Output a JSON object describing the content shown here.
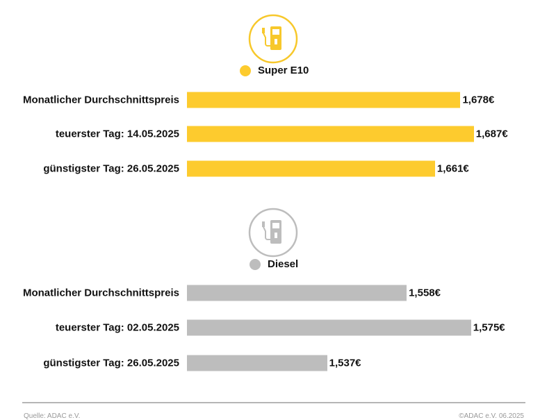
{
  "chart_data": [
    {
      "type": "bar",
      "orientation": "horizontal",
      "series_name": "Super E10",
      "color": "#FDCB2E",
      "icon": "fuel-pump-icon",
      "unit": "€",
      "categories": [
        "Monatlicher Durchschnittspreis",
        "teuerster Tag: 14.05.2025",
        "günstigster Tag: 26.05.2025"
      ],
      "values": [
        1.678,
        1.687,
        1.661
      ],
      "value_labels": [
        "1,678€",
        "1,687€",
        "1,661€"
      ]
    },
    {
      "type": "bar",
      "orientation": "horizontal",
      "series_name": "Diesel",
      "color": "#BDBDBD",
      "icon": "fuel-pump-icon",
      "unit": "€",
      "categories": [
        "Monatlicher Durchschnittspreis",
        "teuerster Tag: 02.05.2025",
        "günstigster Tag: 26.05.2025"
      ],
      "values": [
        1.558,
        1.575,
        1.537
      ],
      "value_labels": [
        "1,558€",
        "1,575€",
        "1,537€"
      ]
    }
  ],
  "footer": {
    "source": "Quelle: ADAC e.V.",
    "copyright": "©ADAC e.V. 06.2025"
  }
}
